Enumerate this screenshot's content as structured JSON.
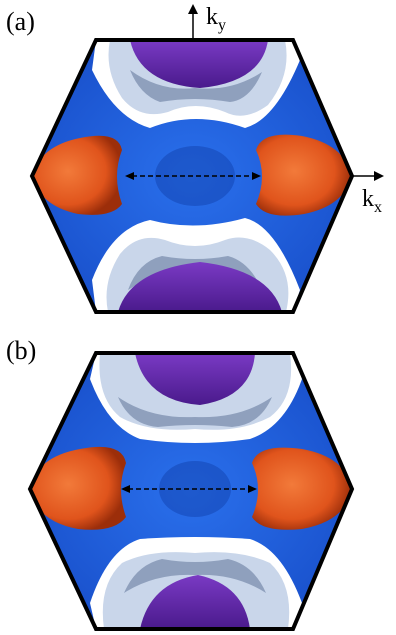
{
  "figure": {
    "panels": [
      {
        "id": "a",
        "label": "(a)"
      },
      {
        "id": "b",
        "label": "(b)"
      }
    ],
    "axes": {
      "ky_main": "k",
      "ky_sub": "y",
      "kx_main": "k",
      "kx_sub": "x"
    },
    "colors": {
      "outline": "#000000",
      "blue_sheet": "#1f5fe0",
      "blue_dark": "#0f3ea8",
      "light_sheet": "#c9d6ea",
      "light_shadow": "#8fa0bd",
      "purple_pocket": "#6a2fb0",
      "purple_dark": "#3e137a",
      "orange_pocket": "#e0541c",
      "orange_dark": "#9c2e0a"
    }
  }
}
